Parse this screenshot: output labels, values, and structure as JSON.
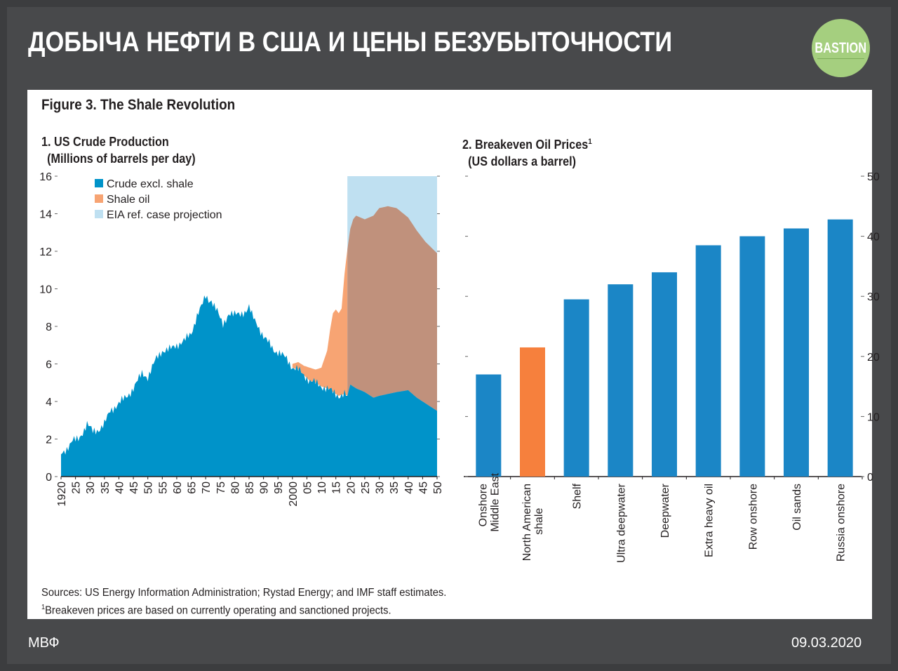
{
  "header": {
    "title": "ДОБЫЧА НЕФТИ В США И ЦЕНЫ БЕЗУБЫТОЧНОСТИ",
    "logo_text": "BASTION"
  },
  "figure": {
    "title": "Figure 3. The Shale Revolution",
    "sources": "Sources: US Energy Information Administration; Rystad Energy; and IMF staff estimates.",
    "footnote_mark": "1",
    "footnote": "Breakeven prices are based on currently operating and sanctioned projects."
  },
  "footer": {
    "left": "МВФ",
    "right": "09.03.2020"
  },
  "colors": {
    "background": "#48494b",
    "crude": "#0093c9",
    "shale": "#f7a473",
    "shale_overlap": "#c0917c",
    "projection": "#bfe0f1",
    "bar_blue": "#1b86c6",
    "bar_orange": "#f6803d",
    "logo": "#a5cf7f"
  },
  "chart_data": [
    {
      "type": "area",
      "title_line1": "1. US Crude Production",
      "title_line2": "(Millions of barrels per day)",
      "xlim": [
        1920,
        2050
      ],
      "ylim": [
        0,
        16
      ],
      "yticks": [
        0,
        2,
        4,
        6,
        8,
        10,
        12,
        14,
        16
      ],
      "xtick_values": [
        1920,
        1925,
        1930,
        1935,
        1940,
        1945,
        1950,
        1955,
        1960,
        1965,
        1970,
        1975,
        1980,
        1985,
        1990,
        1995,
        2000,
        2005,
        2010,
        2015,
        2020,
        2025,
        2030,
        2035,
        2040,
        2045,
        2050
      ],
      "xtick_labels": [
        "1920",
        "25",
        "30",
        "35",
        "40",
        "45",
        "50",
        "55",
        "60",
        "65",
        "70",
        "75",
        "80",
        "85",
        "90",
        "95",
        "2000",
        "05",
        "10",
        "15",
        "20",
        "25",
        "30",
        "35",
        "40",
        "45",
        "50"
      ],
      "legend": [
        "Crude excl. shale",
        "Shale oil",
        "EIA ref. case projection"
      ],
      "projection_range": [
        2019,
        2050
      ],
      "series": [
        {
          "name": "Crude excl. shale",
          "x": [
            1920,
            1922,
            1924,
            1926,
            1928,
            1929,
            1931,
            1933,
            1935,
            1937,
            1940,
            1943,
            1945,
            1948,
            1950,
            1953,
            1955,
            1958,
            1960,
            1963,
            1965,
            1967,
            1969,
            1970,
            1971,
            1972,
            1974,
            1975,
            1976,
            1978,
            1980,
            1982,
            1984,
            1985,
            1986,
            1988,
            1990,
            1992,
            1994,
            1996,
            1998,
            2000,
            2002,
            2004,
            2006,
            2008,
            2010,
            2012,
            2014,
            2016,
            2018,
            2019,
            2020,
            2022,
            2025,
            2028,
            2030,
            2033,
            2036,
            2040,
            2043,
            2046,
            2050
          ],
          "values": [
            1.2,
            1.5,
            1.9,
            2.0,
            2.5,
            2.8,
            2.4,
            2.5,
            2.8,
            3.5,
            3.9,
            4.3,
            4.7,
            5.5,
            5.3,
            6.3,
            6.7,
            6.8,
            7.0,
            7.3,
            7.6,
            8.6,
            9.2,
            9.6,
            9.4,
            9.4,
            8.8,
            8.4,
            8.1,
            8.7,
            8.6,
            8.7,
            8.8,
            9.0,
            8.6,
            8.1,
            7.4,
            7.1,
            6.7,
            6.5,
            6.3,
            5.8,
            5.7,
            5.4,
            5.1,
            5.0,
            4.8,
            4.7,
            4.5,
            4.3,
            4.4,
            4.3,
            4.9,
            4.7,
            4.5,
            4.2,
            4.3,
            4.4,
            4.5,
            4.6,
            4.2,
            3.9,
            3.5
          ]
        },
        {
          "name": "Shale oil",
          "x": [
            2000,
            2002,
            2004,
            2006,
            2008,
            2010,
            2012,
            2013,
            2014,
            2015,
            2016,
            2017,
            2018,
            2019,
            2020,
            2021,
            2022,
            2025,
            2028,
            2030,
            2033,
            2036,
            2040,
            2043,
            2046,
            2050
          ],
          "values": [
            0.2,
            0.4,
            0.5,
            0.7,
            0.7,
            1.0,
            2.0,
            3.2,
            4.2,
            4.5,
            4.4,
            4.6,
            6.4,
            7.8,
            8.3,
            8.9,
            9.2,
            9.2,
            9.7,
            10.0,
            10.0,
            9.8,
            9.2,
            8.9,
            8.6,
            8.4
          ]
        }
      ]
    },
    {
      "type": "bar",
      "title_line1": "2. Breakeven Oil Prices",
      "title_sup": "1",
      "title_line2": "(US dollars a barrel)",
      "ylim": [
        0,
        50
      ],
      "yticks": [
        0,
        10,
        20,
        30,
        40,
        50
      ],
      "categories": [
        {
          "line1": "Onshore",
          "line2": "Middle East",
          "value": 17,
          "color": "#1b86c6"
        },
        {
          "line1": "North American",
          "line2": "shale",
          "value": 21.5,
          "color": "#f6803d"
        },
        {
          "line1": "Shelf",
          "line2": "",
          "value": 29.5,
          "color": "#1b86c6"
        },
        {
          "line1": "Ultra deepwater",
          "line2": "",
          "value": 32,
          "color": "#1b86c6"
        },
        {
          "line1": "Deepwater",
          "line2": "",
          "value": 34,
          "color": "#1b86c6"
        },
        {
          "line1": "Extra heavy oil",
          "line2": "",
          "value": 38.5,
          "color": "#1b86c6"
        },
        {
          "line1": "Row onshore",
          "line2": "",
          "value": 40,
          "color": "#1b86c6"
        },
        {
          "line1": "Oil sands",
          "line2": "",
          "value": 41.3,
          "color": "#1b86c6"
        },
        {
          "line1": "Russia onshore",
          "line2": "",
          "value": 42.8,
          "color": "#1b86c6"
        }
      ]
    }
  ]
}
